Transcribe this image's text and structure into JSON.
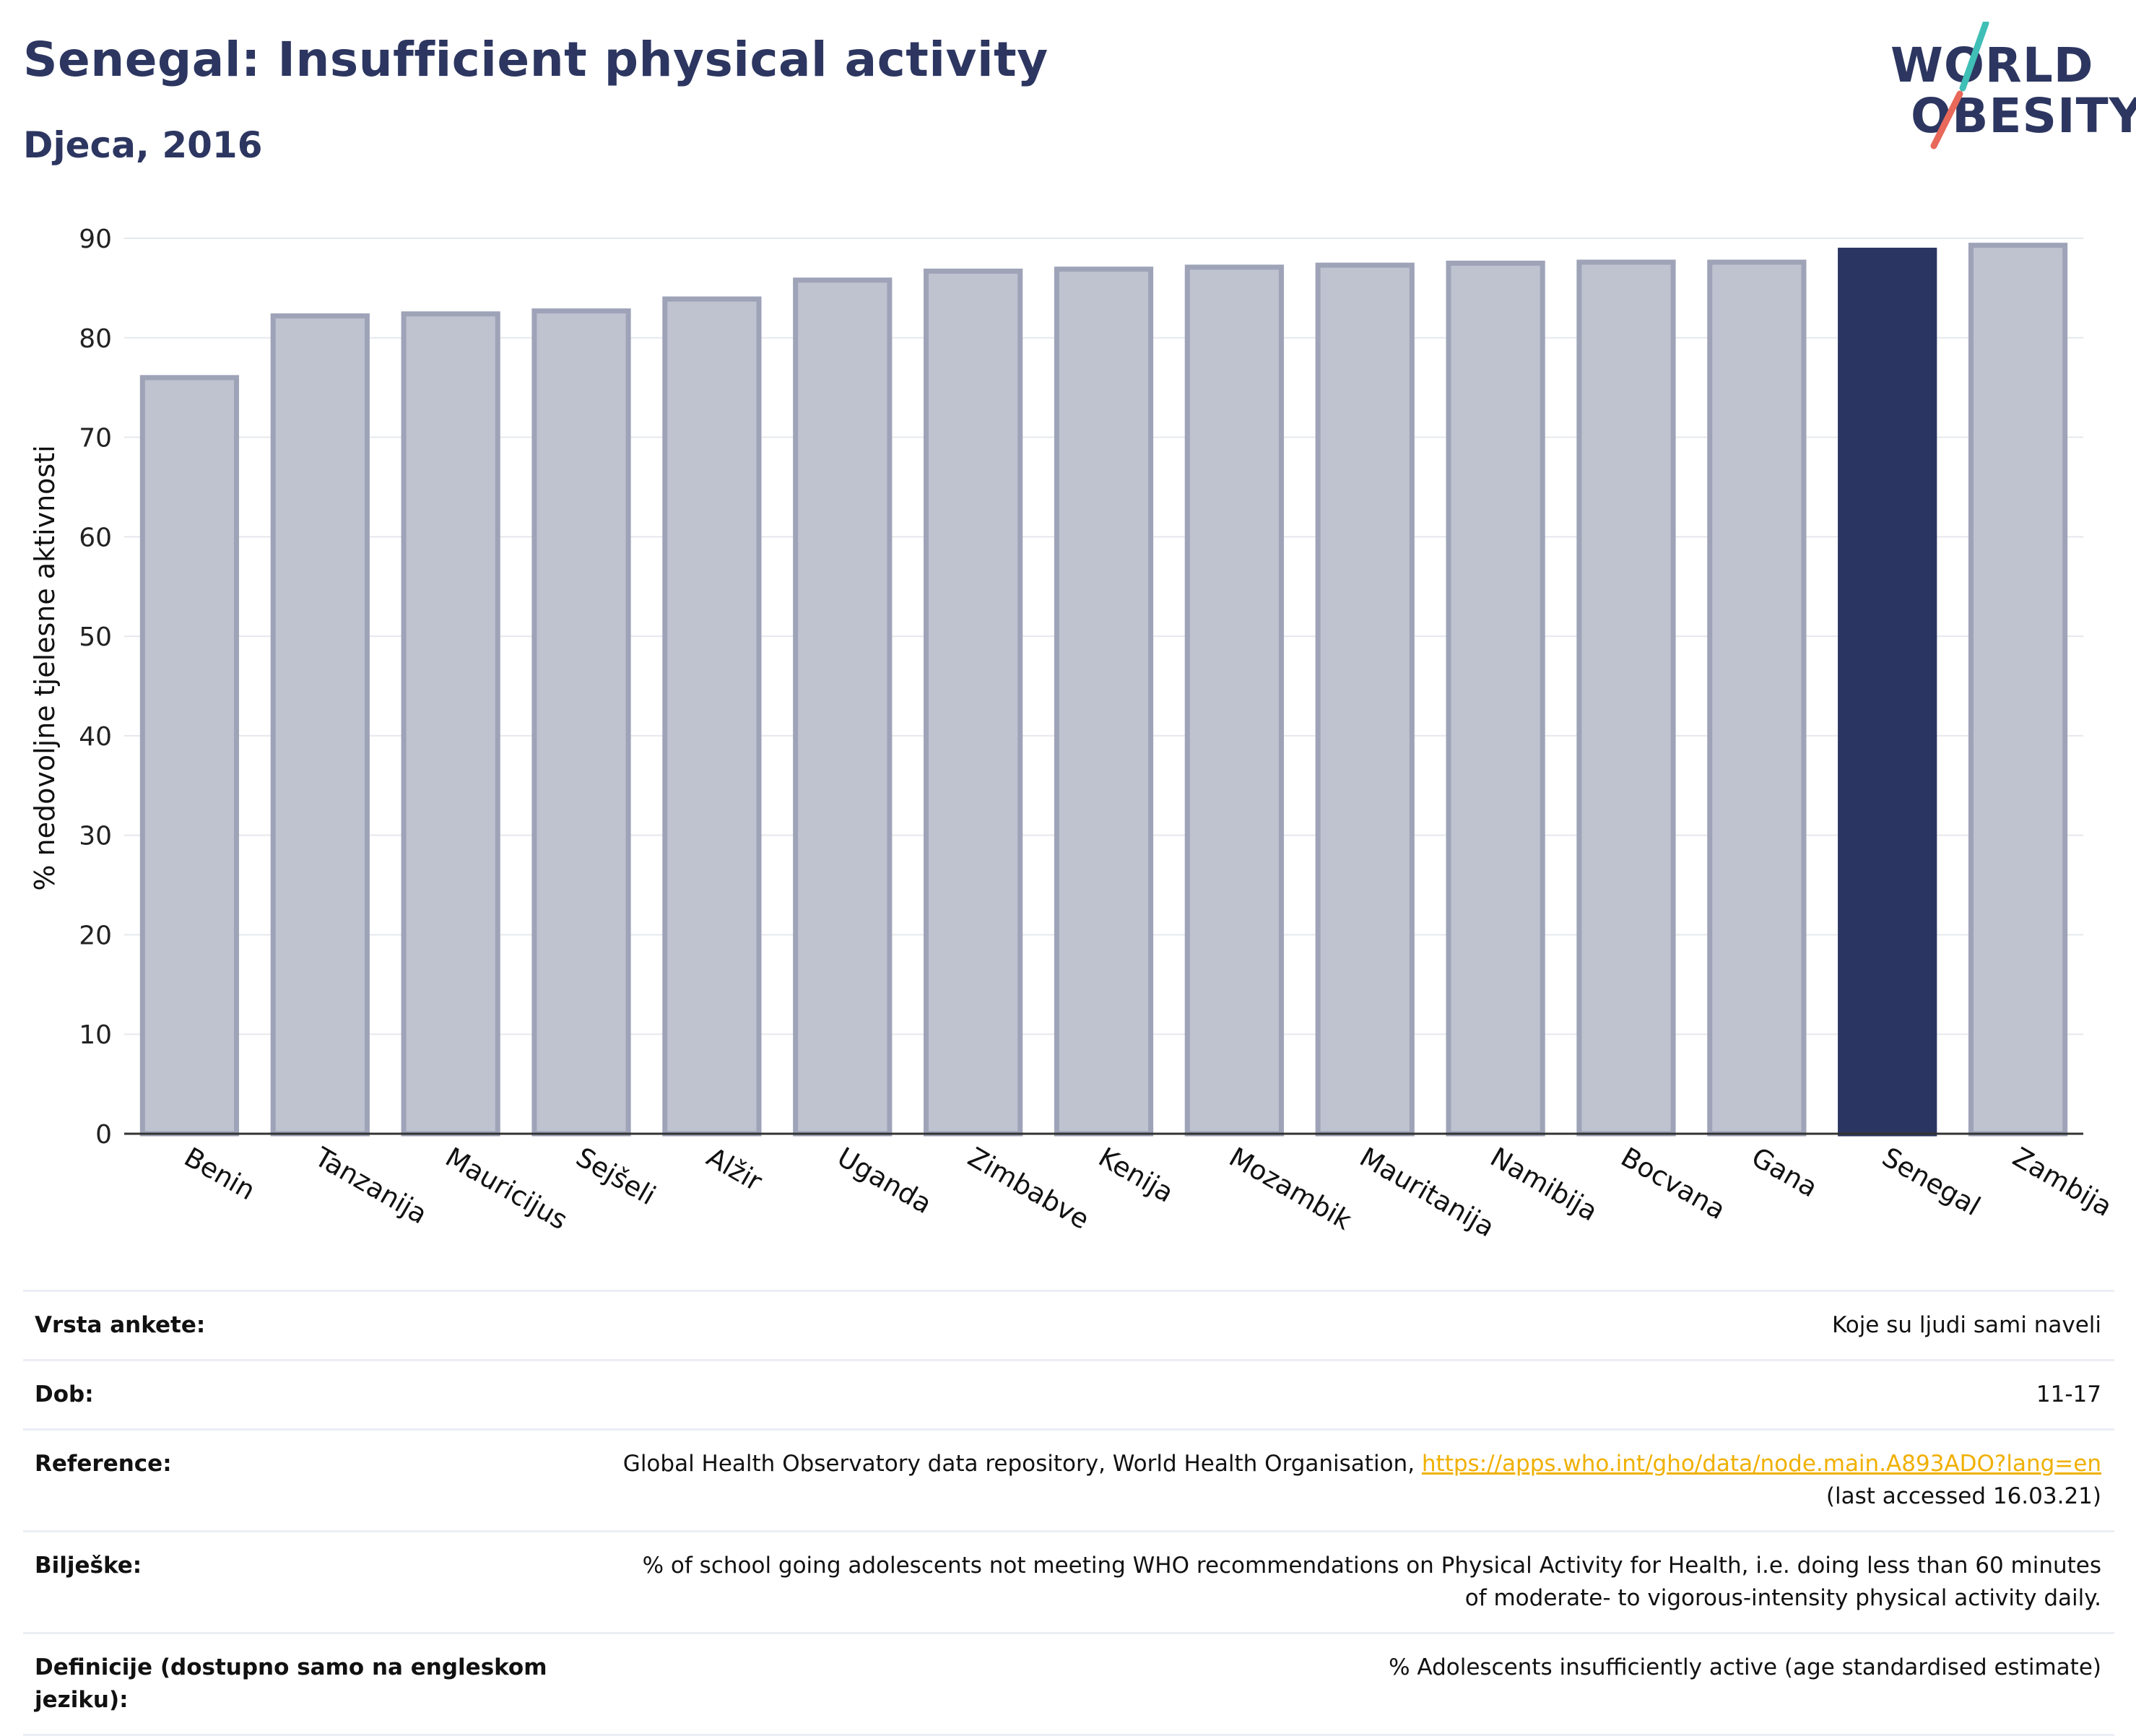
{
  "header": {
    "title": "Senegal: Insufficient physical activity",
    "subtitle": "Djeca, 2016"
  },
  "logo": {
    "line1": "WØRLD",
    "line2": "ØBESITY",
    "word1": "WORLD",
    "word2": "OBESITY"
  },
  "colors": {
    "highlight": "#2b3561",
    "bar_fill": "#bfc2cf",
    "bar_stroke": "#9ea3b8",
    "title": "#2c3660",
    "link": "#f0b000",
    "logo_teal": "#3fbfb6",
    "logo_red": "#e8685a"
  },
  "chart_data": {
    "type": "bar",
    "title": "Senegal: Insufficient physical activity",
    "subtitle": "Djeca, 2016",
    "ylabel": "% nedovoljne tjelesne aktivnosti",
    "xlabel": "",
    "ylim": [
      0,
      90
    ],
    "yticks": [
      0,
      10,
      20,
      30,
      40,
      50,
      60,
      70,
      80,
      90
    ],
    "grid": true,
    "highlight": "Senegal",
    "categories": [
      "Benin",
      "Tanzanija",
      "Mauricijus",
      "Sejšeli",
      "Alžir",
      "Uganda",
      "Zimbabve",
      "Kenija",
      "Mozambik",
      "Mauritanija",
      "Namibija",
      "Bocvana",
      "Gana",
      "Senegal",
      "Zambija"
    ],
    "values": [
      76.0,
      82.2,
      82.4,
      82.7,
      83.9,
      85.8,
      86.7,
      86.9,
      87.1,
      87.3,
      87.5,
      87.6,
      87.6,
      88.8,
      89.3
    ]
  },
  "info": {
    "rows": [
      {
        "label": "Vrsta ankete:",
        "value": "Koje su ljudi sami naveli"
      },
      {
        "label": "Dob:",
        "value": "11-17"
      },
      {
        "label": "Reference:",
        "value": "Global Health Observatory data repository, World Health Organisation, ",
        "link": "https://apps.who.int/gho/data/node.main.A893ADO?lang=en",
        "value_after": "(last accessed 16.03.21)"
      },
      {
        "label": "Bilješke:",
        "value": "% of school going adolescents not meeting WHO recommendations on Physical Activity for Health, i.e. doing less than 60 minutes of moderate- to vigorous-intensity physical activity daily."
      },
      {
        "label": "Definicije (dostupno samo na engleskom jeziku):",
        "value": "% Adolescents insufficiently active (age standardised estimate)"
      }
    ]
  }
}
